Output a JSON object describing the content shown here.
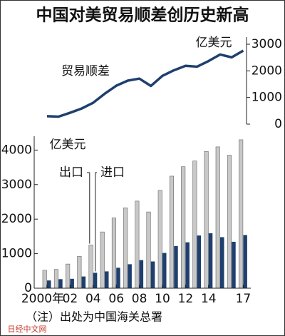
{
  "chart_data": [
    {
      "type": "line",
      "title": "中国对美贸易顺差创历史新高",
      "unit": "亿美元",
      "series": [
        {
          "name": "贸易顺差",
          "color": "#1f3f6e",
          "values": [
            297,
            281,
            427,
            586,
            802,
            1142,
            1443,
            1633,
            1709,
            1434,
            1812,
            2023,
            2189,
            2158,
            2370,
            2614,
            2508,
            2758
          ]
        }
      ],
      "ylim": [
        0,
        3000
      ],
      "yticks": [
        0,
        1000,
        2000,
        3000
      ]
    },
    {
      "type": "bar",
      "unit": "亿美元",
      "categories": [
        "2000年",
        null,
        "02",
        null,
        "04",
        null,
        "06",
        null,
        "08",
        null,
        "10",
        null,
        "12",
        null,
        "14",
        null,
        null,
        "17"
      ],
      "series": [
        {
          "name": "出口",
          "color": "#c8c8c8",
          "values": [
            521,
            543,
            700,
            925,
            1250,
            1629,
            2035,
            2327,
            2523,
            2208,
            2833,
            3245,
            3518,
            3684,
            3961,
            4092,
            3851,
            4298
          ]
        },
        {
          "name": "进口",
          "color": "#1f3f6e",
          "values": [
            224,
            262,
            272,
            339,
            447,
            487,
            592,
            694,
            814,
            774,
            1021,
            1222,
            1329,
            1526,
            1591,
            1478,
            1344,
            1540
          ]
        }
      ],
      "ylim": [
        0,
        4400
      ],
      "yticks": [
        0,
        1000,
        2000,
        3000,
        4000
      ]
    }
  ],
  "note": "（注）出处为中国海关总署",
  "watermark": "日经中文网"
}
